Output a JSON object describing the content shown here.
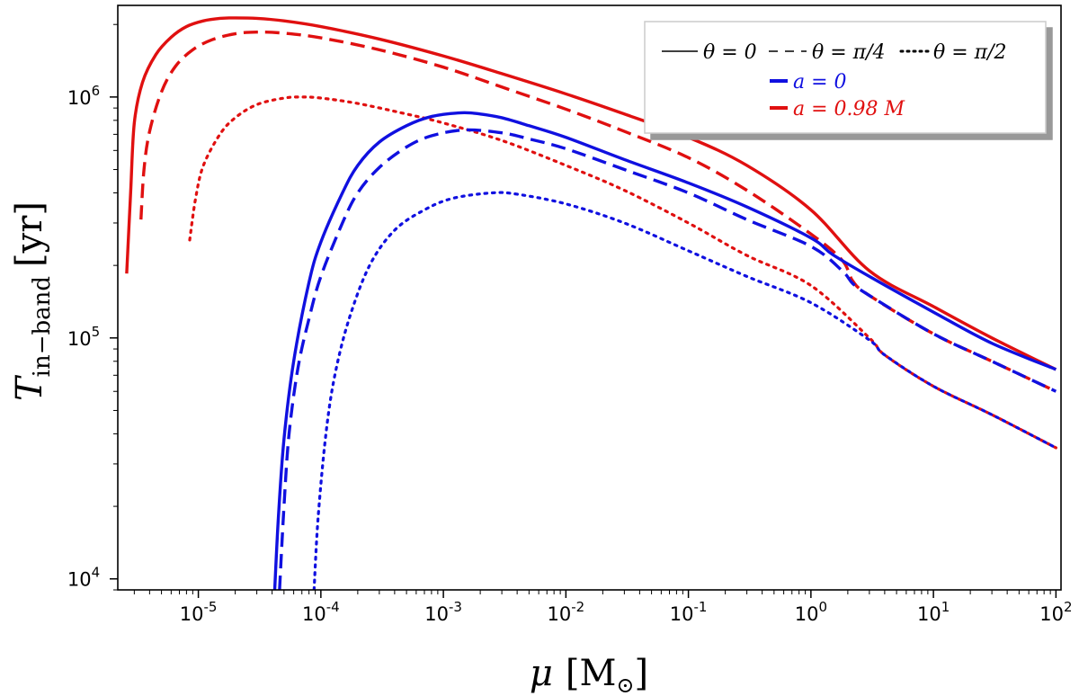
{
  "chart_data": {
    "type": "line",
    "title": "",
    "xlabel": {
      "symbol": "μ",
      "units": "[M",
      "sub": "⊙",
      "close": "]"
    },
    "ylabel": {
      "symbol": "T",
      "sub": "in−band",
      "units": "[yr]"
    },
    "xscale": "log",
    "yscale": "log",
    "xlim": [
      2.2e-06,
      110
    ],
    "ylim": [
      9000,
      2400000
    ],
    "x_ticks": [
      {
        "value": 1e-05,
        "base": "10",
        "exp": "-5"
      },
      {
        "value": 0.0001,
        "base": "10",
        "exp": "-4"
      },
      {
        "value": 0.001,
        "base": "10",
        "exp": "-3"
      },
      {
        "value": 0.01,
        "base": "10",
        "exp": "-2"
      },
      {
        "value": 0.1,
        "base": "10",
        "exp": "-1"
      },
      {
        "value": 1,
        "base": "10",
        "exp": "0"
      },
      {
        "value": 10,
        "base": "10",
        "exp": "1"
      },
      {
        "value": 100,
        "base": "10",
        "exp": "2"
      }
    ],
    "y_ticks": [
      {
        "value": 10000.0,
        "base": "10",
        "exp": "4"
      },
      {
        "value": 100000.0,
        "base": "10",
        "exp": "5"
      },
      {
        "value": 1000000.0,
        "base": "10",
        "exp": "6"
      }
    ],
    "legend": {
      "position": "top-right",
      "styles": [
        {
          "label": "θ = 0",
          "dash": "solid"
        },
        {
          "label": "θ = π/4",
          "dash": "dashed"
        },
        {
          "label": "θ = π/2",
          "dash": "dotted"
        }
      ],
      "spins": [
        {
          "label": "a = 0",
          "color": "#1010e0"
        },
        {
          "label": "a = 0.98 M",
          "color": "#e01010"
        }
      ]
    },
    "series": [
      {
        "name": "a = 0.98 M, θ = 0",
        "color": "#e01010",
        "dash": "solid",
        "x": [
          2.6e-06,
          2.8e-06,
          3e-06,
          3.5e-06,
          4.5e-06,
          6e-06,
          8e-06,
          1.1e-05,
          1.5e-05,
          2e-05,
          3e-05,
          5e-05,
          0.0001,
          0.0003,
          0.001,
          0.003,
          0.01,
          0.03,
          0.1,
          0.3,
          1,
          3,
          10,
          30,
          100
        ],
        "y": [
          185000,
          400000,
          780000,
          1150000,
          1500000,
          1770000,
          1960000,
          2070000,
          2120000,
          2130000,
          2120000,
          2070000,
          1960000,
          1740000,
          1480000,
          1250000,
          1030000,
          850000,
          680000,
          520000,
          340000,
          190000,
          135000,
          100000,
          74000
        ]
      },
      {
        "name": "a = 0.98 M, θ = π/4",
        "color": "#e01010",
        "dash": "dashed",
        "x": [
          3.4e-06,
          3.6e-06,
          4e-06,
          5e-06,
          6.5e-06,
          9e-06,
          1.3e-05,
          2e-05,
          3e-05,
          5e-05,
          0.0001,
          0.0003,
          0.001,
          0.003,
          0.01,
          0.03,
          0.1,
          0.3,
          1,
          1.8,
          2.2,
          3,
          10,
          30,
          100
        ],
        "y": [
          310000,
          500000,
          720000,
          1050000,
          1340000,
          1570000,
          1730000,
          1830000,
          1860000,
          1840000,
          1760000,
          1570000,
          1330000,
          1100000,
          890000,
          720000,
          560000,
          410000,
          270000,
          210000,
          172000,
          150000,
          104000,
          80000,
          60000
        ]
      },
      {
        "name": "a = 0.98 M, θ = π/2",
        "color": "#e01010",
        "dash": "dotted",
        "x": [
          8.5e-06,
          9.5e-06,
          1.1e-05,
          1.5e-05,
          2e-05,
          3e-05,
          5e-05,
          7e-05,
          0.0001,
          0.0002,
          0.0005,
          0.001,
          0.003,
          0.01,
          0.03,
          0.1,
          0.3,
          1,
          3,
          4,
          10,
          30,
          100
        ],
        "y": [
          255000,
          380000,
          520000,
          700000,
          820000,
          930000,
          990000,
          1000000,
          990000,
          940000,
          850000,
          780000,
          660000,
          520000,
          410000,
          300000,
          220000,
          165000,
          100000,
          85000,
          63000,
          48000,
          35000
        ]
      },
      {
        "name": "a = 0, θ = 0",
        "color": "#1010e0",
        "dash": "solid",
        "x": [
          4.2e-05,
          4.5e-05,
          5e-05,
          6e-05,
          8e-05,
          0.0001,
          0.00015,
          0.0002,
          0.0003,
          0.0005,
          0.0008,
          0.0014,
          0.002,
          0.003,
          0.005,
          0.01,
          0.03,
          0.1,
          0.3,
          1,
          1.5,
          3,
          10,
          30,
          100
        ],
        "y": [
          9000,
          18000,
          38000,
          80000,
          170000,
          250000,
          400000,
          520000,
          650000,
          760000,
          830000,
          860000,
          850000,
          820000,
          760000,
          680000,
          550000,
          440000,
          350000,
          260000,
          222000,
          180000,
          128000,
          95000,
          74000
        ]
      },
      {
        "name": "a = 0, θ = π/4",
        "color": "#1010e0",
        "dash": "dashed",
        "x": [
          4.6e-05,
          5e-05,
          5.5e-05,
          6.5e-05,
          8e-05,
          0.0001,
          0.00015,
          0.0002,
          0.0003,
          0.0005,
          0.0008,
          0.0015,
          0.003,
          0.005,
          0.01,
          0.03,
          0.1,
          0.3,
          1,
          1.8,
          2.2,
          3,
          10,
          30,
          100
        ],
        "y": [
          9000,
          20000,
          40000,
          75000,
          120000,
          180000,
          300000,
          400000,
          510000,
          620000,
          690000,
          730000,
          710000,
          670000,
          610000,
          500000,
          400000,
          310000,
          240000,
          190000,
          168000,
          150000,
          104000,
          80000,
          60000
        ]
      },
      {
        "name": "a = 0, θ = π/2",
        "color": "#1010e0",
        "dash": "dotted",
        "x": [
          8.8e-05,
          9.5e-05,
          0.00011,
          0.00013,
          0.00017,
          0.00025,
          0.0004,
          0.0007,
          0.0012,
          0.0025,
          0.004,
          0.01,
          0.03,
          0.1,
          0.3,
          1,
          3,
          4,
          10,
          30,
          100
        ],
        "y": [
          9000,
          18000,
          40000,
          70000,
          120000,
          200000,
          280000,
          340000,
          380000,
          400000,
          395000,
          360000,
          300000,
          230000,
          180000,
          140000,
          98000,
          85000,
          63000,
          48000,
          35000
        ]
      }
    ]
  }
}
